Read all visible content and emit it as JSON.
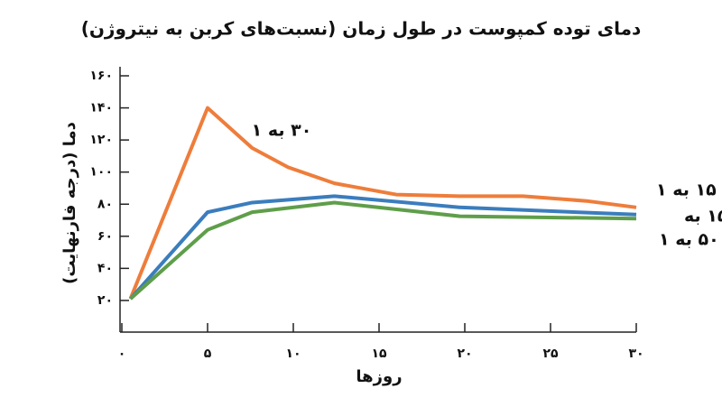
{
  "chart_data": {
    "type": "line",
    "title": "دمای توده کمپوست در طول زمان (نسبت‌های کربن به نیتروژن)",
    "x_label": "روزها",
    "y_label": "دما (درجه فارنهایت)",
    "xlim": [
      0,
      30
    ],
    "xticks": [
      {
        "value": 0,
        "label": "۰"
      },
      {
        "value": 5,
        "label": "۵"
      },
      {
        "value": 10,
        "label": "۱۰"
      },
      {
        "value": 15,
        "label": "۱۵"
      },
      {
        "value": 20,
        "label": "۲۰"
      },
      {
        "value": 25,
        "label": "۲۵"
      },
      {
        "value": 30,
        "label": "۳۰"
      }
    ],
    "ylim": [
      0,
      160
    ],
    "yticks": [
      {
        "value": 20,
        "label": "۲۰"
      },
      {
        "value": 40,
        "label": "۴۰"
      },
      {
        "value": 60,
        "label": "۶۰"
      },
      {
        "value": 80,
        "label": "۸۰"
      },
      {
        "value": 100,
        "label": "۱۰۰"
      },
      {
        "value": 120,
        "label": "۱۲۰"
      },
      {
        "value": 140,
        "label": "۱۴۰"
      },
      {
        "value": 160,
        "label": "۱۶۰"
      }
    ],
    "series": [
      {
        "name": "۳۰ به ۱",
        "color": "#ee7d3b",
        "x": [
          0.5,
          5,
          7.6,
          9.7,
          12.4,
          16,
          19.7,
          23.4,
          27.1,
          30
        ],
        "values": [
          21,
          140,
          115,
          103,
          93,
          86,
          85,
          85,
          82,
          78
        ]
      },
      {
        "name": "۱۵ به",
        "color": "#3b7dbd",
        "x": [
          0.5,
          5,
          7.6,
          12.4,
          19.7,
          30
        ],
        "values": [
          21,
          75,
          81,
          85,
          78,
          73.5
        ]
      },
      {
        "name": "۵۰ به ۱",
        "color": "#5f9e4a",
        "x": [
          0.5,
          5,
          7.6,
          12.4,
          19.7,
          30
        ],
        "values": [
          21,
          64,
          75,
          81,
          72.5,
          71
        ]
      }
    ],
    "annotation": "۱۵ به ۱"
  }
}
